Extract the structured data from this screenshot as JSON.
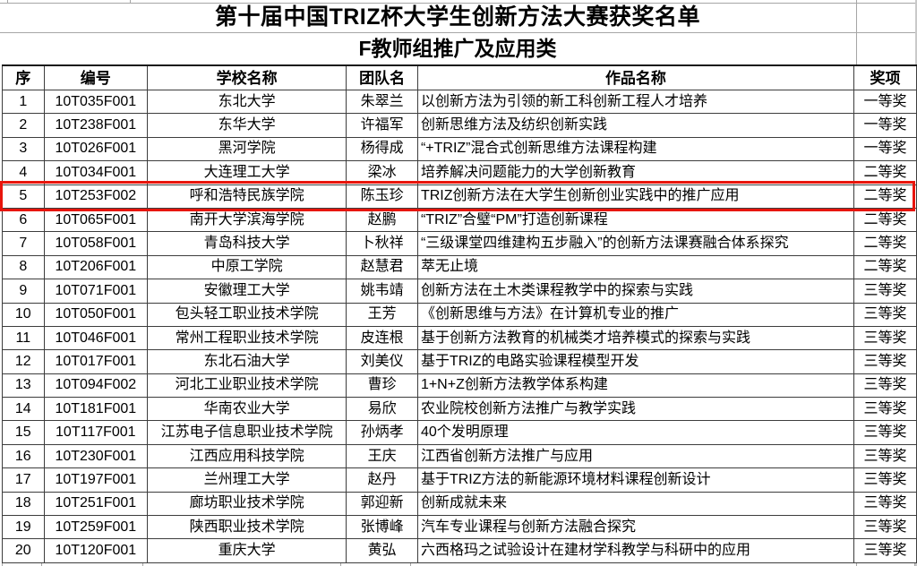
{
  "title": "第十届中国TRIZ杯大学生创新方法大赛获奖名单",
  "subtitle": "F教师组推广及应用类",
  "highlight": {
    "row_index": 5,
    "color": "#e8150c"
  },
  "table": {
    "headers": [
      "序",
      "编号",
      "学校名称",
      "团队名",
      "作品名称",
      "奖项"
    ],
    "rows": [
      [
        "1",
        "10T035F001",
        "东北大学",
        "朱翠兰",
        "以创新方法为引领的新工科创新工程人才培养",
        "一等奖"
      ],
      [
        "2",
        "10T238F001",
        "东华大学",
        "许福军",
        "创新思维方法及纺织创新实践",
        "一等奖"
      ],
      [
        "3",
        "10T026F001",
        "黑河学院",
        "杨得成",
        "“+TRIZ”混合式创新思维方法课程构建",
        "一等奖"
      ],
      [
        "4",
        "10T034F001",
        "大连理工大学",
        "梁冰",
        "培养解决问题能力的大学创新教育",
        "二等奖"
      ],
      [
        "5",
        "10T253F002",
        "呼和浩特民族学院",
        "陈玉珍",
        "TRIZ创新方法在大学生创新创业实践中的推广应用",
        "二等奖"
      ],
      [
        "6",
        "10T065F001",
        "南开大学滨海学院",
        "赵鹏",
        "“TRIZ”合璧“PM”打造创新课程",
        "二等奖"
      ],
      [
        "7",
        "10T058F001",
        "青岛科技大学",
        "卜秋祥",
        "“三级课堂四维建构五步融入”的创新方法课赛融合体系探究",
        "二等奖"
      ],
      [
        "8",
        "10T206F001",
        "中原工学院",
        "赵慧君",
        "萃无止境",
        "二等奖"
      ],
      [
        "9",
        "10T071F001",
        "安徽理工大学",
        "姚韦靖",
        "创新方法在土木类课程教学中的探索与实践",
        "三等奖"
      ],
      [
        "10",
        "10T050F001",
        "包头轻工职业技术学院",
        "王芳",
        "《创新思维与方法》在计算机专业的推广",
        "三等奖"
      ],
      [
        "11",
        "10T046F001",
        "常州工程职业技术学院",
        "皮连根",
        "基于创新方法教育的机械类才培养模式的探索与实践",
        "三等奖"
      ],
      [
        "12",
        "10T017F001",
        "东北石油大学",
        "刘美仪",
        "基于TRIZ的电路实验课程模型开发",
        "三等奖"
      ],
      [
        "13",
        "10T094F002",
        "河北工业职业技术学院",
        "曹珍",
        "1+N+Z创新方法教学体系构建",
        "三等奖"
      ],
      [
        "14",
        "10T181F001",
        "华南农业大学",
        "易欣",
        "农业院校创新方法推广与教学实践",
        "三等奖"
      ],
      [
        "15",
        "10T117F001",
        "江苏电子信息职业技术学院",
        "孙炳孝",
        "40个发明原理",
        "三等奖"
      ],
      [
        "16",
        "10T230F001",
        "江西应用科技学院",
        "王庆",
        "江西省创新方法推广与应用",
        "三等奖"
      ],
      [
        "17",
        "10T197F001",
        "兰州理工大学",
        "赵丹",
        "基于TRIZ方法的新能源环境材料课程创新设计",
        "三等奖"
      ],
      [
        "18",
        "10T251F001",
        "廊坊职业技术学院",
        "郭迎新",
        "创新成就未来",
        "三等奖"
      ],
      [
        "19",
        "10T259F001",
        "陕西职业技术学院",
        "张博峰",
        "汽车专业课程与创新方法融合探究",
        "三等奖"
      ],
      [
        "20",
        "10T120F001",
        "重庆大学",
        "黄弘",
        "六西格玛之试验设计在建材学科教学与科研中的应用",
        "三等奖"
      ]
    ]
  }
}
